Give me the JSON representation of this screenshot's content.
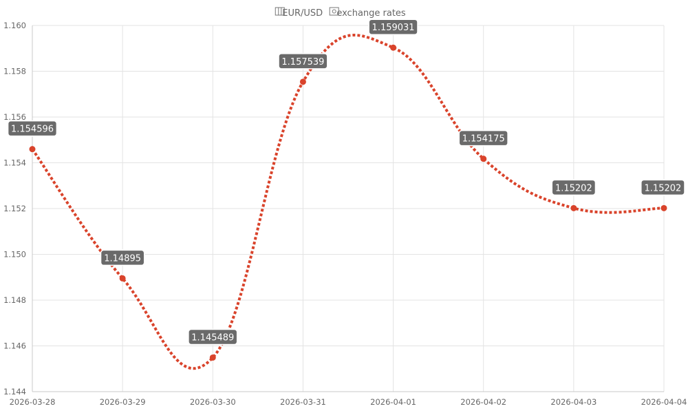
{
  "chart_data": {
    "type": "line",
    "title": "EUR/USD exchange rates",
    "title_icons": [
      "map-icon",
      "dollar-bill-icon"
    ],
    "xlabel": "",
    "ylabel": "",
    "x": [
      "2026-03-28",
      "2026-03-29",
      "2026-03-30",
      "2026-03-31",
      "2026-04-01",
      "2026-04-02",
      "2026-04-03",
      "2026-04-04"
    ],
    "series": [
      {
        "values": [
          1.154596,
          1.14895,
          1.145489,
          1.157539,
          1.159031,
          1.154175,
          1.15202,
          1.15202
        ],
        "labels": [
          "1.154596",
          "1.14895",
          "1.145489",
          "1.157539",
          "1.159031",
          "1.154175",
          "1.15202",
          "1.15202"
        ],
        "color": "#d9432b",
        "line_style": "dotted"
      }
    ],
    "ylim": [
      1.144,
      1.16
    ],
    "yticks": [
      "1.144",
      "1.146",
      "1.148",
      "1.150",
      "1.152",
      "1.154",
      "1.156",
      "1.158",
      "1.160"
    ],
    "grid": true,
    "legend": "none"
  }
}
